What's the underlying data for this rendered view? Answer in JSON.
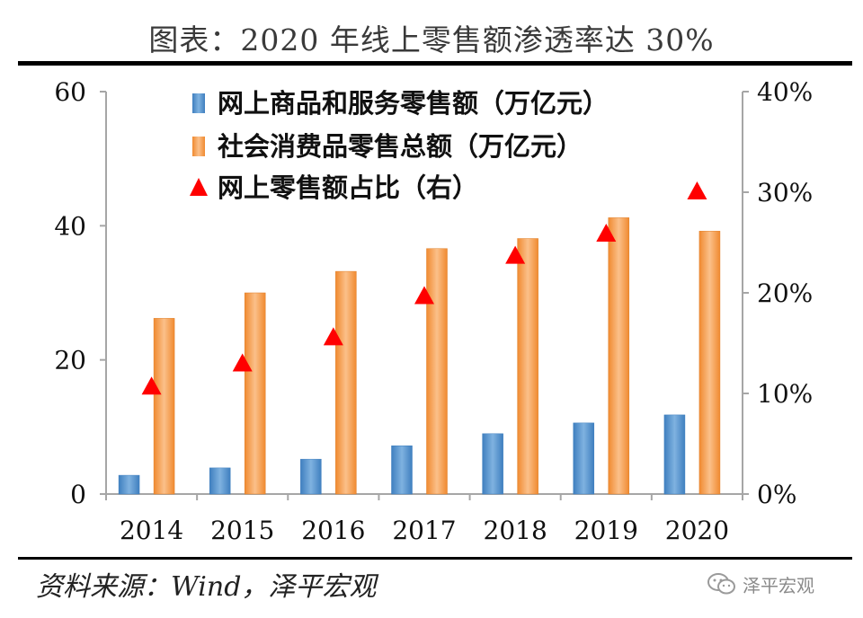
{
  "title": "图表：2020 年线上零售额渗透率达 30%",
  "source": "资料来源：Wind，泽平宏观",
  "watermark": {
    "text": "泽平宏观",
    "icon": "wechat-icon"
  },
  "colors": {
    "online": "#4f8fc8",
    "total": "#f59a47",
    "ratio": "#ff0000",
    "axis": "#a6a6a6"
  },
  "chart_data": {
    "type": "bar",
    "categories": [
      "2014",
      "2015",
      "2016",
      "2017",
      "2018",
      "2019",
      "2020"
    ],
    "series": [
      {
        "name": "网上商品和服务零售额（万亿元）",
        "type": "bar",
        "axis": "left",
        "values": [
          2.8,
          3.9,
          5.2,
          7.2,
          9.0,
          10.6,
          11.8
        ]
      },
      {
        "name": "社会消费品零售总额（万亿元）",
        "type": "bar",
        "axis": "left",
        "values": [
          26.2,
          30.0,
          33.2,
          36.6,
          38.1,
          41.2,
          39.2
        ]
      },
      {
        "name": "网上零售额占比（右）",
        "type": "scatter",
        "marker": "triangle",
        "axis": "right",
        "values": [
          10.6,
          12.9,
          15.5,
          19.6,
          23.6,
          25.8,
          30.0
        ]
      }
    ],
    "y_left": {
      "min": 0,
      "max": 60,
      "ticks": [
        "0",
        "20",
        "40",
        "60"
      ],
      "tick_values": [
        0,
        20,
        40,
        60
      ]
    },
    "y_right": {
      "min": 0,
      "max": 40,
      "ticks": [
        "0%",
        "10%",
        "20%",
        "30%",
        "40%"
      ],
      "tick_values": [
        0,
        10,
        20,
        30,
        40
      ]
    },
    "grid": false,
    "legend_position": "top-left"
  }
}
